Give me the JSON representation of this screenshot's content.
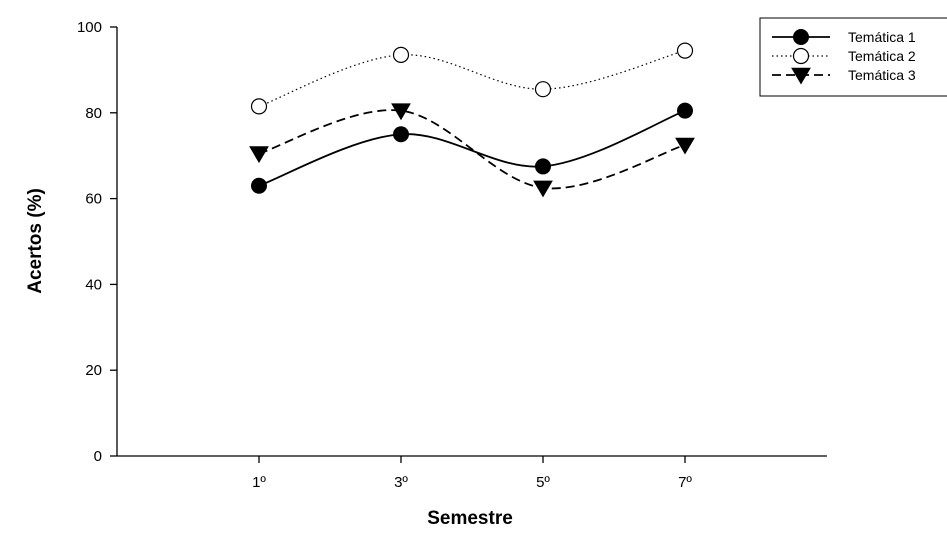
{
  "chart_data": {
    "type": "line",
    "xlabel": "Semestre",
    "ylabel": "Acertos (%)",
    "categories": [
      "1º",
      "3º",
      "5º",
      "7º"
    ],
    "x": [
      1,
      3,
      5,
      7
    ],
    "xlim": [
      -1,
      9
    ],
    "ylim": [
      0,
      100
    ],
    "yticks": [
      0,
      20,
      40,
      60,
      80,
      100
    ],
    "grid": false,
    "legend_position": "top-right",
    "series": [
      {
        "name": "Temática 1",
        "values": [
          63,
          75,
          67.5,
          80.5
        ],
        "marker": "filled-circle",
        "line": "solid"
      },
      {
        "name": "Temática 2",
        "values": [
          81.5,
          93.5,
          85.5,
          94.5
        ],
        "marker": "open-circle",
        "line": "dotted"
      },
      {
        "name": "Temática 3",
        "values": [
          70.5,
          80.5,
          62.5,
          72.5
        ],
        "marker": "filled-triangle-down",
        "line": "dashed"
      }
    ]
  }
}
